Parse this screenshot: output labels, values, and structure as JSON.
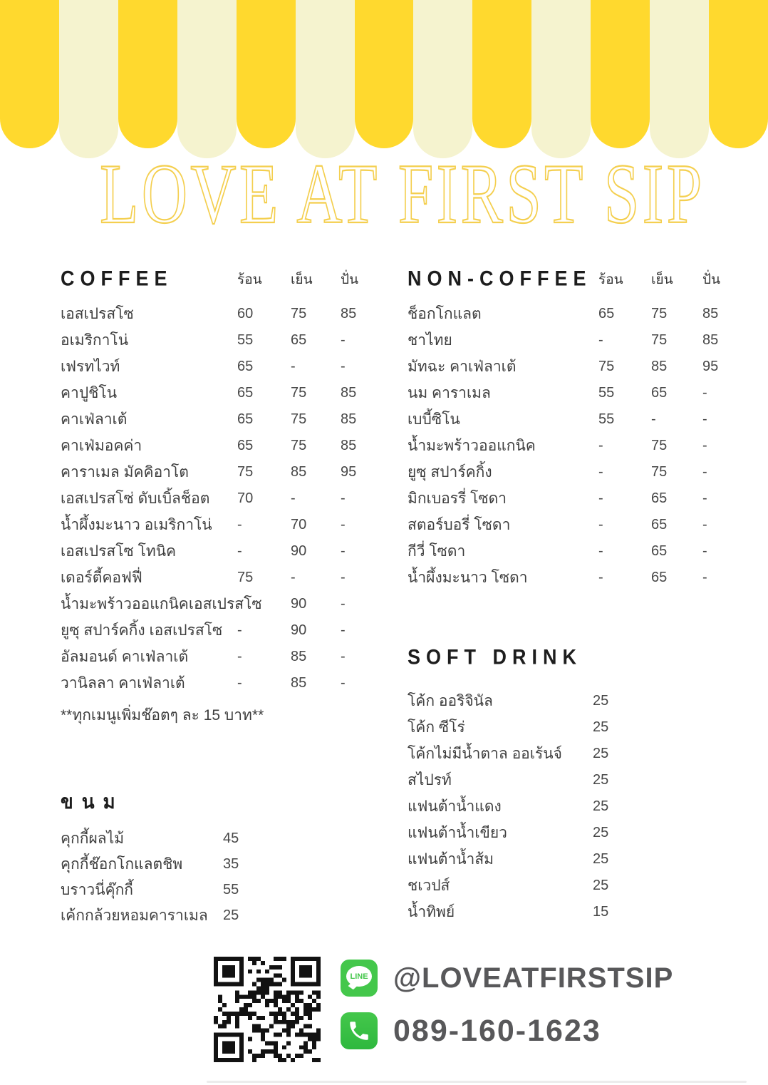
{
  "title": "LOVE AT FIRST SIP",
  "price_columns": {
    "hot": "ร้อน",
    "iced": "เย็น",
    "blended": "ปั่น"
  },
  "sections": {
    "coffee": {
      "header": "COFFEE",
      "items": [
        {
          "name": "เอสเปรสโซ",
          "hot": "60",
          "iced": "75",
          "blended": "85"
        },
        {
          "name": "อเมริกาโน่",
          "hot": "55",
          "iced": "65",
          "blended": "-"
        },
        {
          "name": "เฟรทไวท์",
          "hot": "65",
          "iced": "-",
          "blended": "-"
        },
        {
          "name": "คาปูชิโน",
          "hot": "65",
          "iced": "75",
          "blended": "85"
        },
        {
          "name": "คาเฟ่ลาเต้",
          "hot": "65",
          "iced": "75",
          "blended": "85"
        },
        {
          "name": "คาเฟ่มอคค่า",
          "hot": "65",
          "iced": "75",
          "blended": "85"
        },
        {
          "name": "คาราเมล มัคคิอาโต",
          "hot": "75",
          "iced": "85",
          "blended": "95"
        },
        {
          "name": "เอสเปรสโซ่ ดับเบิ้ลช็อต",
          "hot": "70",
          "iced": "-",
          "blended": "-"
        },
        {
          "name": "น้ำผึ้งมะนาว อเมริกาโน่",
          "hot": "-",
          "iced": "70",
          "blended": "-"
        },
        {
          "name": "เอสเปรสโซ โทนิค",
          "hot": "-",
          "iced": "90",
          "blended": "-"
        },
        {
          "name": "เดอร์ตี้คอฟฟี่",
          "hot": "75",
          "iced": "-",
          "blended": "-"
        },
        {
          "name": "น้ำมะพร้าวออแกนิคเอสเปรสโซ",
          "hot": "-",
          "iced": "90",
          "blended": "-"
        },
        {
          "name": "ยูซุ สปาร์คกิ้ง เอสเปรสโซ",
          "hot": "-",
          "iced": "90",
          "blended": "-"
        },
        {
          "name": "อัลมอนด์ คาเฟ่ลาเต้",
          "hot": "-",
          "iced": "85",
          "blended": "-"
        },
        {
          "name": "วานิลลา คาเฟ่ลาเต้",
          "hot": "-",
          "iced": "85",
          "blended": "-"
        }
      ],
      "note": "**ทุกเมนูเพิ่มช๊อตๆ ละ 15 บาท**"
    },
    "non_coffee": {
      "header": "NON-COFFEE",
      "items": [
        {
          "name": "ช็อกโกแลต",
          "hot": "65",
          "iced": "75",
          "blended": "85"
        },
        {
          "name": "ชาไทย",
          "hot": "-",
          "iced": "75",
          "blended": "85"
        },
        {
          "name": "มัทฉะ คาเฟ่ลาเต้",
          "hot": "75",
          "iced": "85",
          "blended": "95"
        },
        {
          "name": "นม คาราเมล",
          "hot": "55",
          "iced": "65",
          "blended": "-"
        },
        {
          "name": "เบบี้ซิโน",
          "hot": "55",
          "iced": "-",
          "blended": "-"
        },
        {
          "name": "น้ำมะพร้าวออแกนิค",
          "hot": "-",
          "iced": "75",
          "blended": "-"
        },
        {
          "name": "ยูซุ สปาร์คกิ้ง",
          "hot": "-",
          "iced": "75",
          "blended": "-"
        },
        {
          "name": "มิกเบอรรี่ โซดา",
          "hot": "-",
          "iced": "65",
          "blended": "-"
        },
        {
          "name": "สตอร์บอรี่ โซดา",
          "hot": "-",
          "iced": "65",
          "blended": "-"
        },
        {
          "name": "กีวี่ โซดา",
          "hot": "-",
          "iced": "65",
          "blended": "-"
        },
        {
          "name": "น้ำผึ้งมะนาว โซดา",
          "hot": "-",
          "iced": "65",
          "blended": "-"
        }
      ]
    },
    "soft_drink": {
      "header": "SOFT DRINK",
      "items": [
        {
          "name": "โค้ก ออริจินัล",
          "price": "25"
        },
        {
          "name": "โค้ก ซีโร่",
          "price": "25"
        },
        {
          "name": "โค้กไม่มีน้ำตาล ออเร้นจ์",
          "price": "25"
        },
        {
          "name": "สไปรท์",
          "price": "25"
        },
        {
          "name": "แฟนต้าน้ำแดง",
          "price": "25"
        },
        {
          "name": "แฟนต้าน้ำเขียว",
          "price": "25"
        },
        {
          "name": "แฟนต้าน้ำส้ม",
          "price": "25"
        },
        {
          "name": "ชเวปส์",
          "price": "25"
        },
        {
          "name": "น้ำทิพย์",
          "price": "15"
        }
      ]
    },
    "dessert": {
      "header": "ขนม",
      "items": [
        {
          "name": "คุกกี้ผลไม้",
          "price": "45"
        },
        {
          "name": "คุกกี้ช๊อกโกแลตชิพ",
          "price": "35"
        },
        {
          "name": "บราวนี่คุ๊กกี้",
          "price": "55"
        },
        {
          "name": "เค้กกล้วยหอมคาราเมล",
          "price": "25"
        }
      ]
    }
  },
  "footer": {
    "line_badge": "LINE",
    "line_id": "@LOVEATFIRSTSIP",
    "phone": "089-160-1623"
  },
  "colors": {
    "awning_yellow": "#FFD92E",
    "awning_cream": "#F5F3CF",
    "title_yellow": "#F4CF4F",
    "text": "#3E3E3E",
    "header_text": "#1D1D1D",
    "line_green": "#44C74B",
    "footer_text": "#58585A"
  }
}
